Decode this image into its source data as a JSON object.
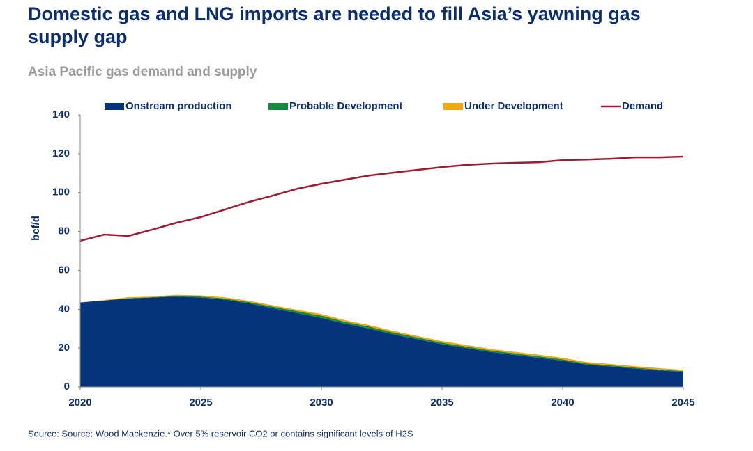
{
  "chart_data": {
    "type": "stacked_area_line",
    "title": "Domestic gas and LNG imports are needed to fill Asia’s yawning gas supply gap",
    "subtitle": "Asia Pacific gas demand and supply",
    "y_label": "bcf/d",
    "source": "Source: Source: Wood Mackenzie.* Over 5% reservoir CO2 or contains significant levels of H2S",
    "legend": "top",
    "grid": false,
    "x": [
      2020,
      2021,
      2022,
      2023,
      2024,
      2025,
      2026,
      2027,
      2028,
      2029,
      2030,
      2031,
      2032,
      2033,
      2034,
      2035,
      2036,
      2037,
      2038,
      2039,
      2040,
      2041,
      2042,
      2043,
      2044,
      2045
    ],
    "xlim": [
      2020,
      2045
    ],
    "xticks": [
      2020,
      2025,
      2030,
      2035,
      2040,
      2045
    ],
    "ylim": [
      0,
      140
    ],
    "yticks": [
      0,
      20,
      40,
      60,
      80,
      100,
      120,
      140
    ],
    "series": [
      {
        "name": "Onstream production",
        "kind": "area",
        "color": "#06347a",
        "values": [
          43.5,
          44.5,
          45.5,
          46,
          46.5,
          46,
          45,
          43,
          40.5,
          38,
          35.5,
          32.5,
          30,
          27,
          24.5,
          22,
          20,
          18,
          16.5,
          15,
          13.5,
          11.5,
          10.5,
          9.5,
          8.5,
          7.8
        ]
      },
      {
        "name": "Probable Development",
        "kind": "area",
        "color": "#168a3e",
        "values": [
          0,
          0,
          0.2,
          0.2,
          0.3,
          0.5,
          0.5,
          0.7,
          0.8,
          1,
          1.2,
          1,
          1,
          1,
          0.9,
          0.8,
          0.8,
          0.8,
          0.8,
          0.8,
          0.7,
          0.6,
          0.6,
          0.5,
          0.5,
          0.4
        ]
      },
      {
        "name": "Under Development",
        "kind": "area",
        "color": "#f0a810",
        "values": [
          0,
          0.2,
          0.5,
          0.3,
          0.6,
          0.6,
          0.6,
          0.6,
          0.7,
          0.7,
          0.8,
          0.8,
          0.8,
          0.8,
          0.8,
          0.8,
          0.8,
          0.8,
          0.8,
          0.8,
          0.8,
          0.7,
          0.7,
          0.7,
          0.7,
          0.6
        ]
      },
      {
        "name": "Demand",
        "kind": "line",
        "color": "#9e1b32",
        "values": [
          75.2,
          78.4,
          77.7,
          81,
          84.5,
          87.4,
          91.3,
          95.2,
          98.5,
          102,
          104.5,
          106.7,
          108.8,
          110.3,
          111.7,
          113.1,
          114.2,
          114.9,
          115.3,
          115.6,
          116.7,
          117,
          117.4,
          118.1,
          118.1,
          118.5
        ]
      }
    ]
  }
}
